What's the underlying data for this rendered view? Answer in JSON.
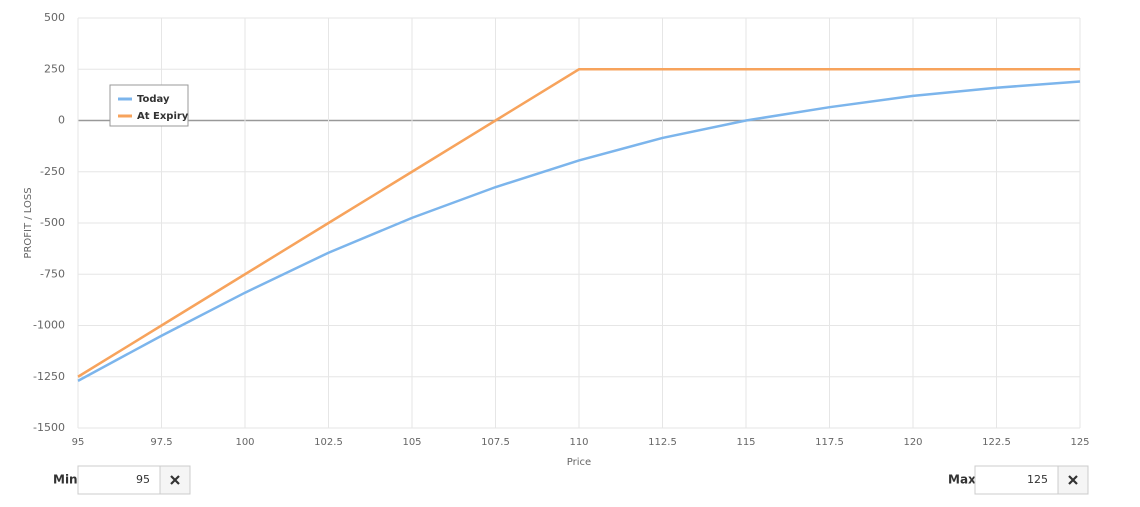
{
  "chart_data": {
    "type": "line",
    "y_label": "PROFIT / LOSS",
    "x_label": "Price",
    "x": [
      95,
      97.5,
      100,
      102.5,
      105,
      107.5,
      110,
      112.5,
      115,
      117.5,
      120,
      122.5,
      125
    ],
    "series": [
      {
        "name": "Today",
        "color": "#7cb5ec",
        "values": [
          -1270,
          -1050,
          -840,
          -645,
          -475,
          -325,
          -195,
          -85,
          0,
          65,
          120,
          160,
          190
        ]
      },
      {
        "name": "At Expiry",
        "color": "#f7a35c",
        "values": [
          -1250,
          -1000,
          -750,
          -500,
          -250,
          0,
          250,
          250,
          250,
          250,
          250,
          250,
          250
        ]
      }
    ],
    "xlim": [
      95,
      125
    ],
    "xticks": [
      95,
      97.5,
      100,
      102.5,
      105,
      107.5,
      110,
      112.5,
      115,
      117.5,
      120,
      122.5,
      125
    ],
    "ylim": [
      -1500,
      500
    ],
    "yticks": [
      -1500,
      -1250,
      -1000,
      -750,
      -500,
      -250,
      0,
      250,
      500
    ],
    "grid": true,
    "legend": "upper-left"
  },
  "controls": {
    "min_label": "Min",
    "min_value": "95",
    "max_label": "Max",
    "max_value": "125"
  }
}
